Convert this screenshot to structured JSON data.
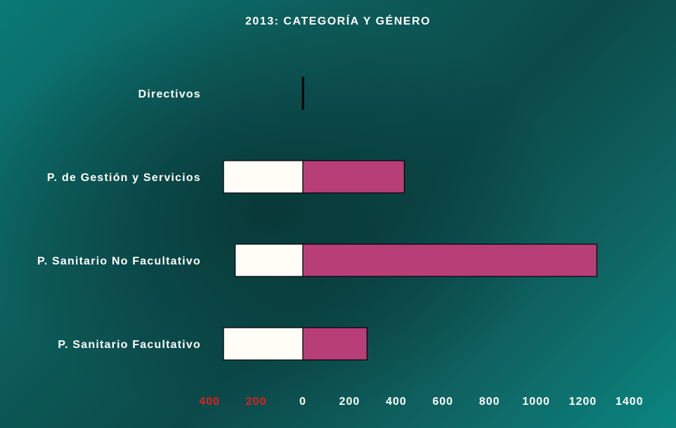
{
  "chart_data": {
    "type": "bar",
    "orientation": "horizontal",
    "stacked": true,
    "title": "2013: CATEGORÍA Y GÉNERO",
    "categories": [
      "Directivos",
      "P. de Gestión y Servicios",
      "P. Sanitario No Facultativo",
      "P. Sanitario Facultativo"
    ],
    "series": [
      {
        "color": "#fffdf5",
        "values": [
          -2,
          -340,
          -290,
          -340
        ]
      },
      {
        "color": "#b83e78",
        "values": [
          2,
          435,
          1260,
          275
        ]
      }
    ],
    "xlim": [
      -400,
      1400
    ],
    "x_ticks": [
      {
        "value": -400,
        "label": "400",
        "color": "#e02020"
      },
      {
        "value": -200,
        "label": "200",
        "color": "#e02020"
      },
      {
        "value": 0,
        "label": "0",
        "color": "#ffffff"
      },
      {
        "value": 200,
        "label": "200",
        "color": "#ffffff"
      },
      {
        "value": 400,
        "label": "400",
        "color": "#ffffff"
      },
      {
        "value": 600,
        "label": "600",
        "color": "#ffffff"
      },
      {
        "value": 800,
        "label": "800",
        "color": "#ffffff"
      },
      {
        "value": 1000,
        "label": "1000",
        "color": "#ffffff"
      },
      {
        "value": 1200,
        "label": "1200",
        "color": "#ffffff"
      },
      {
        "value": 1400,
        "label": "1400",
        "color": "#ffffff"
      }
    ],
    "grid": false,
    "legend": "none"
  }
}
